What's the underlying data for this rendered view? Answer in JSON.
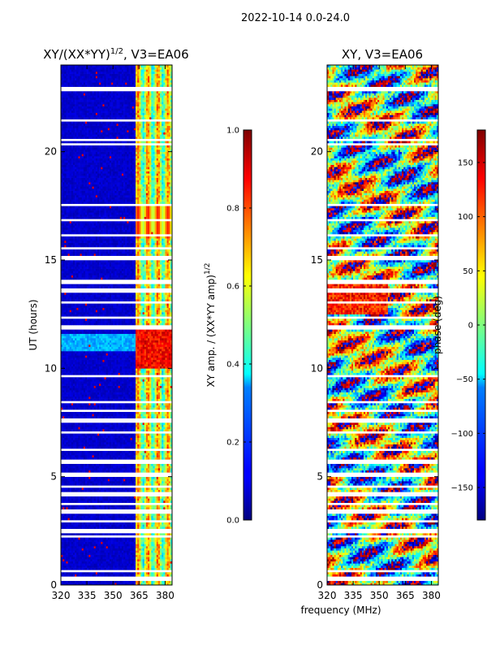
{
  "figure": {
    "suptitle": "2022-10-14 0.0-24.0",
    "xlabel": "frequency (MHz)",
    "ylabel": "UT (hours)"
  },
  "chart_data": [
    {
      "type": "heatmap",
      "title_main": "XY/(XX*YY)",
      "title_sup": "1/2",
      "title_rest": ", V3=EA06",
      "xlabel": "frequency (MHz)",
      "ylabel": "UT (hours)",
      "xlim": [
        320,
        384
      ],
      "ylim": [
        0,
        24
      ],
      "xticks": [
        320,
        335,
        350,
        365,
        380
      ],
      "yticks": [
        0,
        5,
        10,
        15,
        20
      ],
      "colorbar": {
        "label_main": "XY amp. / (XX*YY amp)",
        "label_sup": "1/2",
        "range": [
          0.0,
          1.0
        ],
        "ticks": [
          "0.0",
          "0.2",
          "0.4",
          "0.6",
          "0.8",
          "1.0"
        ],
        "tick_values": [
          0.0,
          0.2,
          0.4,
          0.6,
          0.8,
          1.0
        ],
        "colormap": "jet"
      }
    },
    {
      "type": "heatmap",
      "title": "XY, V3=EA06",
      "xlabel": "frequency (MHz)",
      "ylabel": "UT (hours)",
      "xlim": [
        320,
        384
      ],
      "ylim": [
        0,
        24
      ],
      "xticks": [
        320,
        335,
        350,
        365,
        380
      ],
      "yticks": [
        0,
        5,
        10,
        15,
        20
      ],
      "colorbar": {
        "label": "phase (deg)",
        "range": [
          -180,
          180
        ],
        "ticks": [
          "−150",
          "−100",
          "−50",
          "0",
          "50",
          "100",
          "150"
        ],
        "tick_values": [
          -150,
          -100,
          -50,
          0,
          50,
          100,
          150
        ],
        "colormap": "jet"
      }
    }
  ],
  "colors": {
    "jet_dark_blue": "#00007f",
    "jet_blue": "#0000ff",
    "jet_cyan": "#00ffff",
    "jet_yellow": "#ffff00",
    "jet_red": "#ff0000",
    "jet_dark_red": "#7f0000",
    "flagged": "#ffffff"
  }
}
